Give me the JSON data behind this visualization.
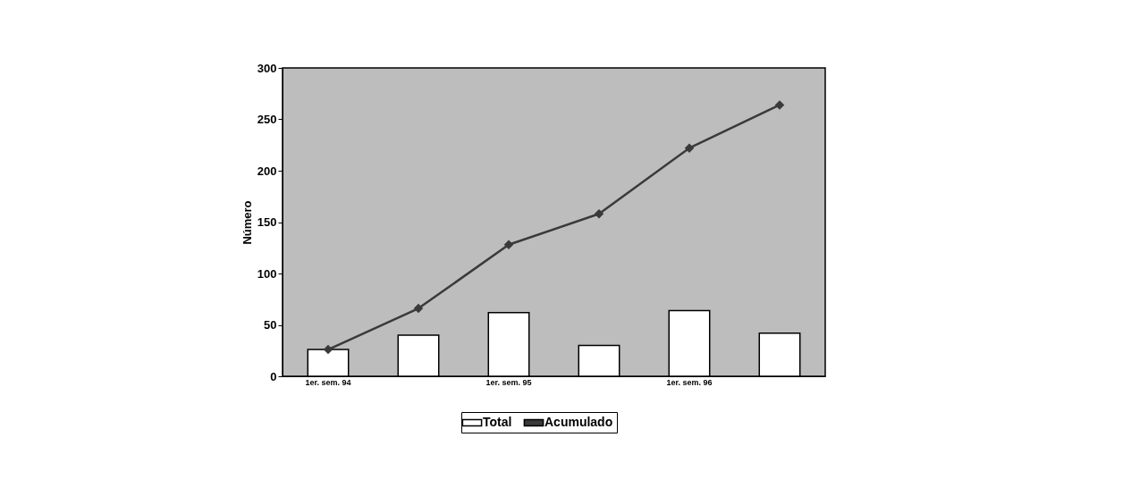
{
  "chart_data": {
    "type": "bar",
    "ylabel": "Número",
    "categories": [
      "1er. sem. 94",
      null,
      "1er. sem. 95",
      null,
      "1er. sem. 96",
      null
    ],
    "series": [
      {
        "name": "Total",
        "color": "#ffffff",
        "values": [
          26,
          40,
          62,
          30,
          64,
          42
        ]
      },
      {
        "name": "Acumulado",
        "type": "line",
        "color": "#3a3a3a",
        "marker": "diamond",
        "values": [
          26,
          66,
          128,
          158,
          222,
          264
        ]
      }
    ],
    "ylim": [
      0,
      300
    ],
    "yticks": [
      0,
      50,
      100,
      150,
      200,
      250,
      300
    ],
    "grid": false,
    "legend": "bottom"
  }
}
